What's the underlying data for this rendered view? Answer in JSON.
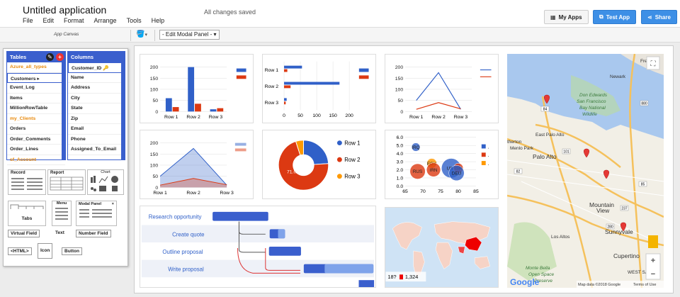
{
  "app": {
    "title": "Untitled application",
    "menu": [
      "File",
      "Edit",
      "Format",
      "Arrange",
      "Tools",
      "Help"
    ],
    "status": "All changes saved"
  },
  "top_buttons": {
    "my_apps": "My Apps",
    "test_app": "Test App",
    "share": "Share"
  },
  "toolbar": {
    "canvas_label": "App Canvas",
    "panel_select": "- Edit Modal Panel -"
  },
  "tables": {
    "header": "Tables",
    "items": [
      {
        "label": "Azure_all_types",
        "style": "orange"
      },
      {
        "label": "Customers",
        "style": "selected"
      },
      {
        "label": "Event_Log",
        "style": "normal"
      },
      {
        "label": "Items",
        "style": "normal"
      },
      {
        "label": "MillionRowTable",
        "style": "normal"
      },
      {
        "label": "my_Clients",
        "style": "orange"
      },
      {
        "label": "Orders",
        "style": "normal"
      },
      {
        "label": "Order_Comments",
        "style": "normal"
      },
      {
        "label": "Order_Lines",
        "style": "normal"
      },
      {
        "label": "sf_Account",
        "style": "orange"
      }
    ]
  },
  "columns": {
    "header": "Columns",
    "items": [
      "Customer_ID",
      "Name",
      "Address",
      "City",
      "State",
      "Zip",
      "Email",
      "Phone",
      "Assigned_To_Email"
    ]
  },
  "widgets": {
    "record": "Record",
    "report": "Report",
    "chart": "Chart",
    "tabs": "Tabs",
    "menu": "Menu",
    "modal_panel": "Modal Panel",
    "virtual_field": "Virtual Field",
    "text": "Text",
    "number_field": "Number Field",
    "html": "<HTML>",
    "icon": "Icon",
    "button": "Button"
  },
  "colors": {
    "blue": "#3060c8",
    "red": "#dc3912",
    "orange": "#ff9900",
    "accent": "#3d8fe6",
    "panel_blue": "#3a5fcd"
  },
  "charts": {
    "bar": {
      "categories": [
        "Row 1",
        "Row 2",
        "Row 3"
      ],
      "series": [
        [
          60,
          200,
          10
        ],
        [
          20,
          35,
          15
        ]
      ],
      "yticks": [
        "200",
        "150",
        "100",
        "50",
        "0"
      ],
      "ylim": [
        0,
        200
      ]
    },
    "hbar": {
      "categories": [
        "Row 1",
        "Row 2",
        "Row 3"
      ],
      "series": [
        [
          55,
          170,
          8
        ],
        [
          10,
          20,
          5
        ]
      ],
      "xticks": [
        "0",
        "50",
        "100",
        "150",
        "200"
      ],
      "xlim": [
        0,
        200
      ]
    },
    "line": {
      "categories": [
        "Row 1",
        "Row 2",
        "Row 3"
      ],
      "series": [
        [
          50,
          175,
          10
        ],
        [
          10,
          40,
          12
        ]
      ],
      "yticks": [
        "200",
        "150",
        "100",
        "50",
        "0"
      ],
      "ylim": [
        0,
        200
      ]
    },
    "area": {
      "categories": [
        "Row 1",
        "Row 2",
        "Row 3"
      ],
      "series": [
        [
          50,
          175,
          10
        ],
        [
          10,
          40,
          12
        ]
      ],
      "yticks": [
        "200",
        "150",
        "100",
        "50",
        "0"
      ],
      "ylim": [
        0,
        200
      ]
    },
    "pie": {
      "legend": [
        "Row 1",
        "Row 2",
        "Row 3"
      ],
      "values": [
        24,
        71,
        5
      ],
      "label": "71.0%"
    },
    "bubble": {
      "yticks": [
        "6.0",
        "5.0",
        "4.0",
        "3.0",
        "2.0",
        "1.0",
        "0.0"
      ],
      "xticks": [
        "65",
        "70",
        "75",
        "80",
        "85"
      ],
      "ylim": [
        0,
        6
      ],
      "xlim": [
        65,
        85
      ],
      "points": [
        {
          "label": "IRQ",
          "x": 68,
          "y": 4.8,
          "color": "blue"
        },
        {
          "label": "EGY",
          "x": 72.5,
          "y": 2.8,
          "color": "orange"
        },
        {
          "label": "IRN",
          "x": 73,
          "y": 2.0,
          "color": "red"
        },
        {
          "label": "RUS",
          "x": 68.5,
          "y": 1.8,
          "color": "red"
        },
        {
          "label": "USA",
          "x": 78,
          "y": 2.2,
          "color": "blue"
        },
        {
          "label": "ISR",
          "x": 80,
          "y": 2.2,
          "color": "red"
        },
        {
          "label": "DEU",
          "x": 79.5,
          "y": 1.6,
          "color": "blue"
        }
      ],
      "legend_marks": [
        ".",
        ".",
        "."
      ]
    },
    "gantt": {
      "tasks": [
        "Research opportunity",
        "Create quote",
        "Outline proposal",
        "Write proposal"
      ]
    },
    "geo": {
      "legend": [
        "18?",
        "1,324"
      ]
    }
  },
  "map": {
    "labels": [
      "Fremon",
      "Newark",
      "Don Edwards",
      "San Francisco",
      "Bay National",
      "Wildlife",
      "East Palo Alto",
      "therton",
      "Menlo Park",
      "Palo Alto",
      "Mountain",
      "View",
      "Sunnyvale",
      "Cupertino",
      "Monte Bella",
      "Open Space",
      "Preserve",
      "Los Altos",
      "WEST SA"
    ],
    "roads": [
      "84",
      "101",
      "82",
      "280",
      "237",
      "880",
      "85"
    ],
    "footer": "Map data ©2018 Google",
    "terms": "Terms of Use",
    "google": "Google"
  }
}
